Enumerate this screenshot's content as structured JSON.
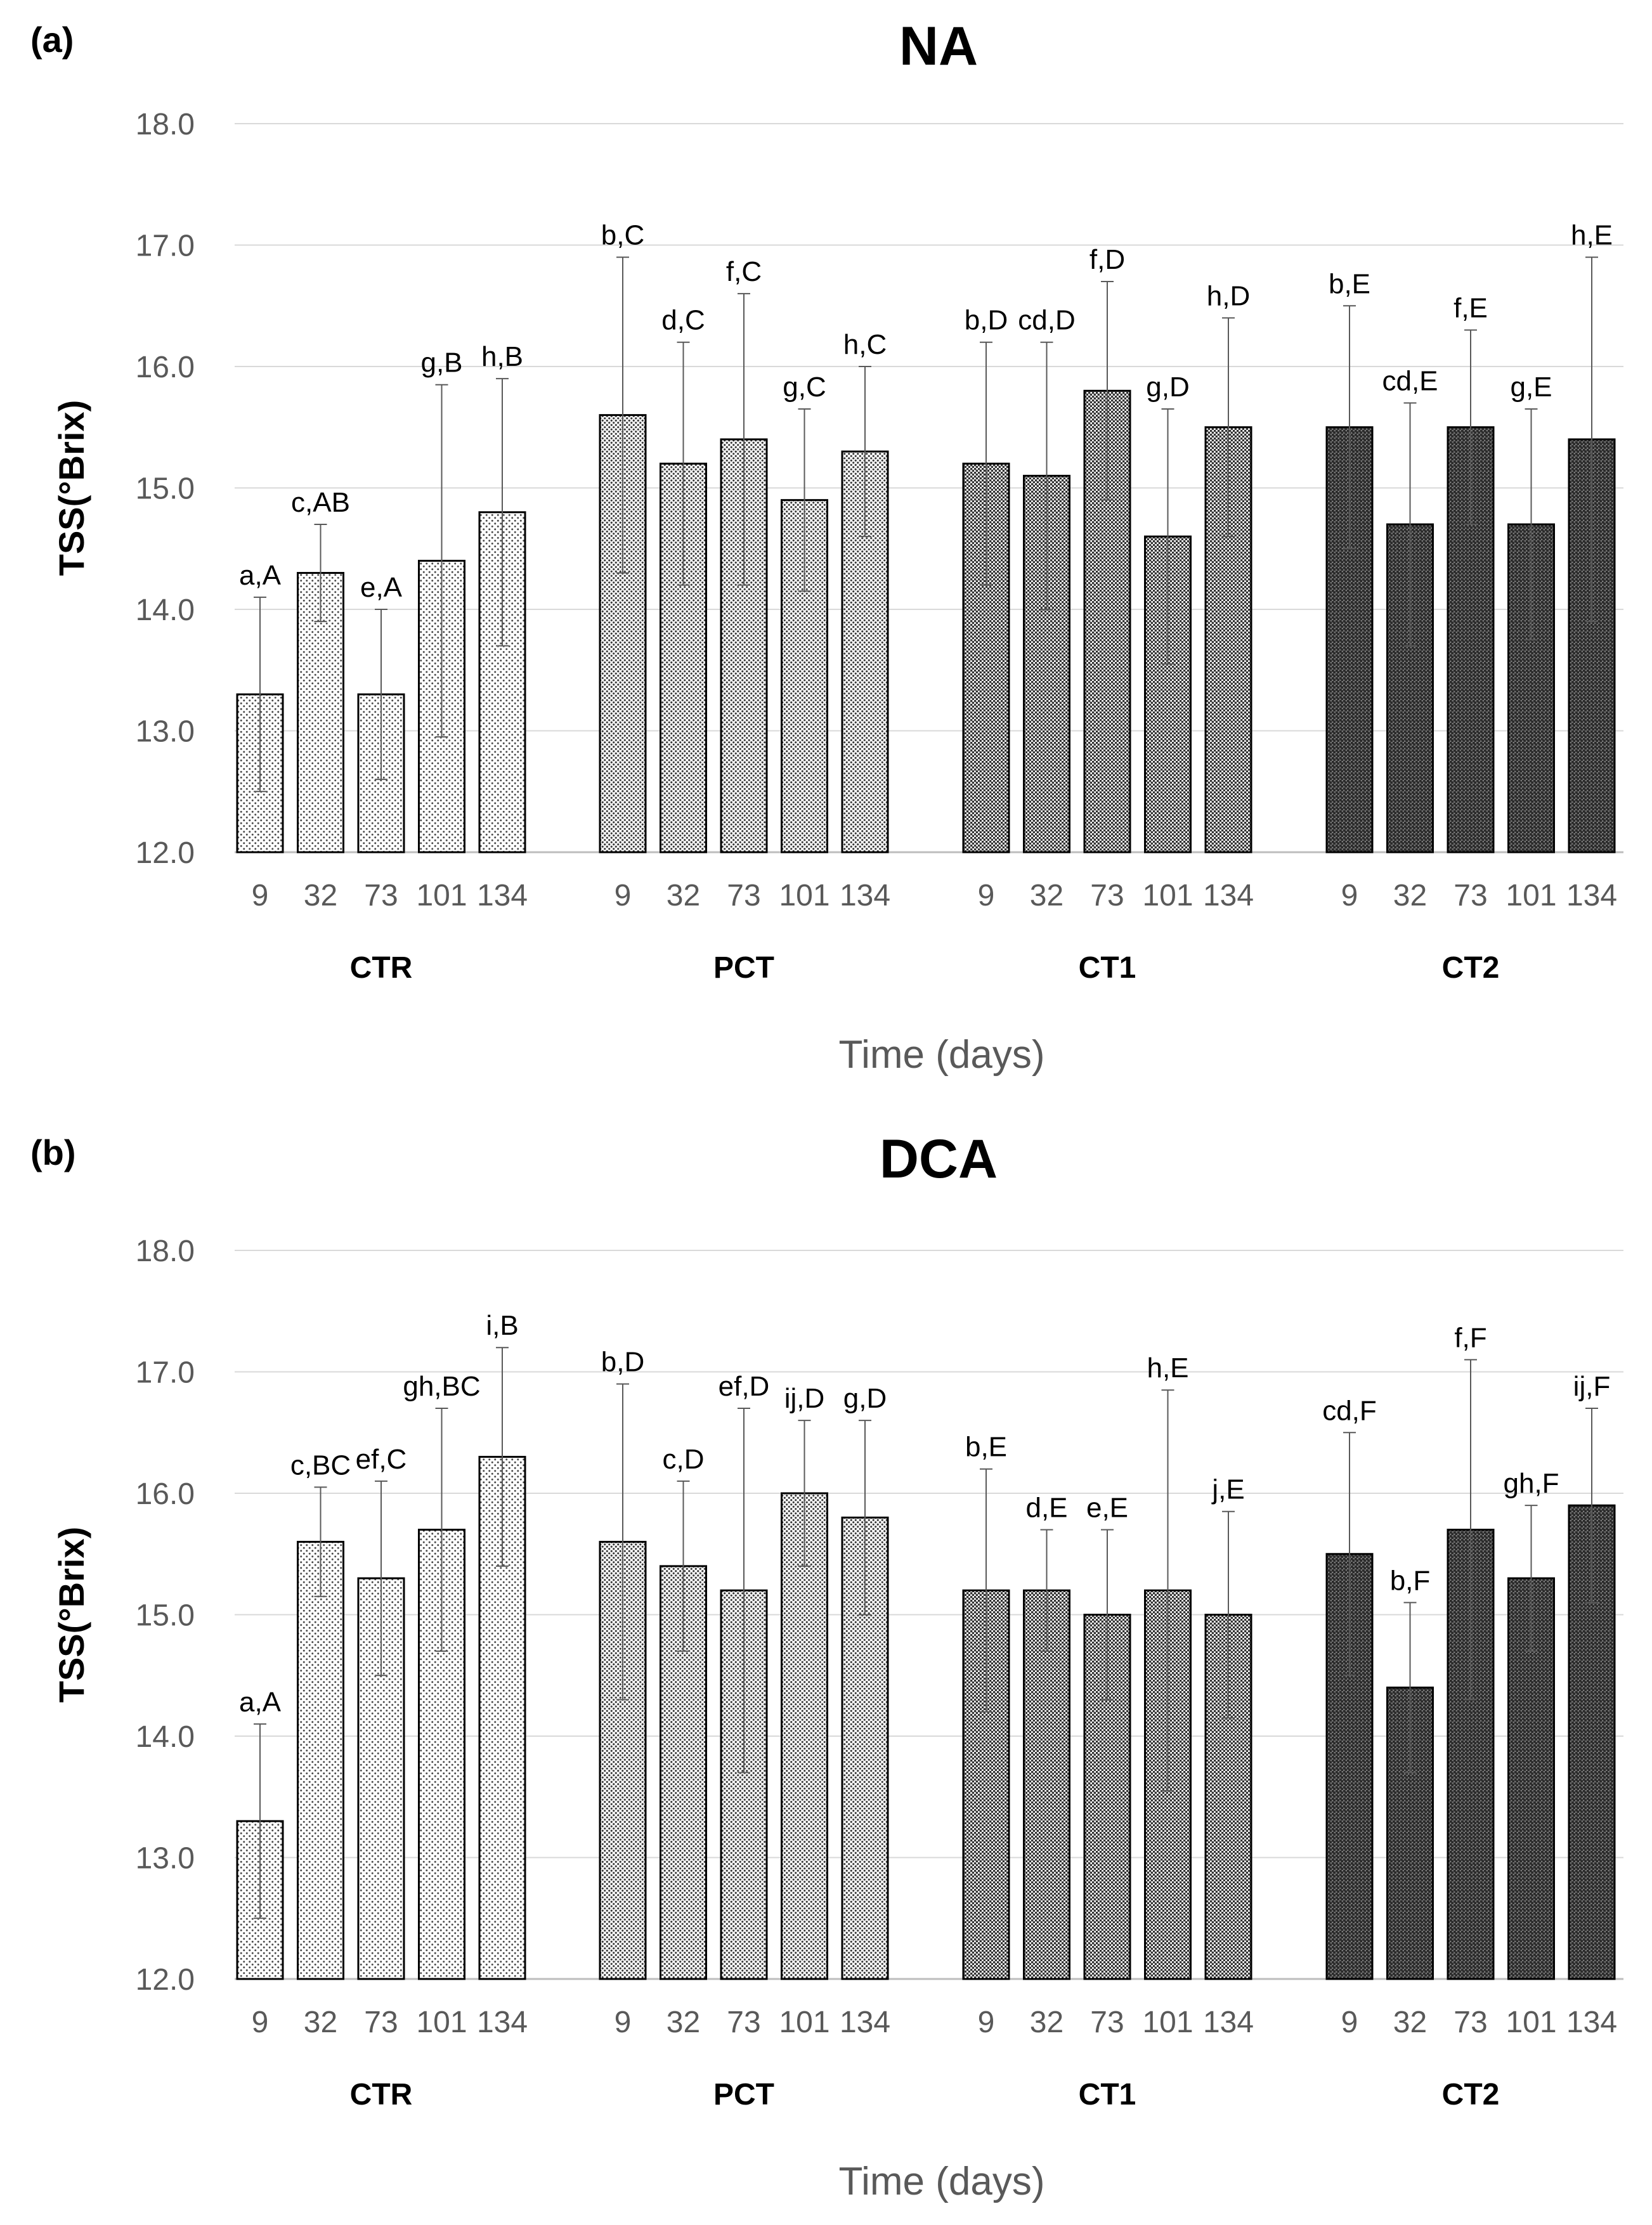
{
  "chart_data": [
    {
      "type": "bar",
      "panel_label": "(a)",
      "title": "NA",
      "ylabel": "TSS(°Brix)",
      "xlabel": "Time (days)",
      "ylim": [
        12.0,
        18.0
      ],
      "ytick_step": 1.0,
      "yticks": [
        "12.0",
        "13.0",
        "14.0",
        "15.0",
        "16.0",
        "17.0",
        "18.0"
      ],
      "grid": true,
      "groups": [
        {
          "name": "CTR",
          "shade": "light",
          "categories": [
            "9",
            "32",
            "73",
            "101",
            "134"
          ],
          "values": [
            13.3,
            14.3,
            13.3,
            14.4,
            14.8
          ],
          "errors": [
            0.8,
            0.4,
            0.7,
            1.45,
            1.1
          ],
          "labels": [
            "a,A",
            "c,AB",
            "e,A",
            "g,B",
            "h,B"
          ]
        },
        {
          "name": "PCT",
          "shade": "lightmid",
          "categories": [
            "9",
            "32",
            "73",
            "101",
            "134"
          ],
          "values": [
            15.6,
            15.2,
            15.4,
            14.9,
            15.3
          ],
          "errors": [
            1.3,
            1.0,
            1.2,
            0.75,
            0.7
          ],
          "labels": [
            "b,C",
            "d,C",
            "f,C",
            "g,C",
            "h,C"
          ]
        },
        {
          "name": "CT1",
          "shade": "mid",
          "categories": [
            "9",
            "32",
            "73",
            "101",
            "134"
          ],
          "values": [
            15.2,
            15.1,
            15.8,
            14.6,
            15.5
          ],
          "errors": [
            1.0,
            1.1,
            0.9,
            1.05,
            0.9
          ],
          "labels": [
            "b,D",
            "cd,D",
            "f,D",
            "g,D",
            "h,D"
          ]
        },
        {
          "name": "CT2",
          "shade": "dark",
          "categories": [
            "9",
            "32",
            "73",
            "101",
            "134"
          ],
          "values": [
            15.5,
            14.7,
            15.5,
            14.7,
            15.4
          ],
          "errors": [
            1.0,
            1.0,
            0.8,
            0.95,
            1.5
          ],
          "labels": [
            "b,E",
            "cd,E",
            "f,E",
            "g,E",
            "h,E"
          ]
        }
      ]
    },
    {
      "type": "bar",
      "panel_label": "(b)",
      "title": "DCA",
      "ylabel": "TSS(°Brix)",
      "xlabel": "Time (days)",
      "ylim": [
        12.0,
        18.0
      ],
      "ytick_step": 1.0,
      "yticks": [
        "12.0",
        "13.0",
        "14.0",
        "15.0",
        "16.0",
        "17.0",
        "18.0"
      ],
      "grid": true,
      "groups": [
        {
          "name": "CTR",
          "shade": "light",
          "categories": [
            "9",
            "32",
            "73",
            "101",
            "134"
          ],
          "values": [
            13.3,
            15.6,
            15.3,
            15.7,
            16.3
          ],
          "errors": [
            0.8,
            0.45,
            0.8,
            1.0,
            0.9
          ],
          "labels": [
            "a,A",
            "c,BC",
            "ef,C",
            "gh,BC",
            "i,B"
          ]
        },
        {
          "name": "PCT",
          "shade": "lightmid",
          "categories": [
            "9",
            "32",
            "73",
            "101",
            "134"
          ],
          "values": [
            15.6,
            15.4,
            15.2,
            16.0,
            15.8
          ],
          "errors": [
            1.3,
            0.7,
            1.5,
            0.6,
            0.8
          ],
          "labels": [
            "b,D",
            "c,D",
            "ef,D",
            "ij,D",
            "g,D"
          ]
        },
        {
          "name": "CT1",
          "shade": "mid",
          "categories": [
            "9",
            "32",
            "73",
            "101",
            "134"
          ],
          "values": [
            15.2,
            15.2,
            15.0,
            15.2,
            15.0
          ],
          "errors": [
            1.0,
            0.5,
            0.7,
            1.65,
            0.85
          ],
          "labels": [
            "b,E",
            "d,E",
            "e,E",
            "h,E",
            "j,E"
          ]
        },
        {
          "name": "CT2",
          "shade": "dark",
          "categories": [
            "9",
            "32",
            "73",
            "101",
            "134"
          ],
          "values": [
            15.5,
            14.4,
            15.7,
            15.3,
            15.9
          ],
          "errors": [
            1.0,
            0.7,
            1.4,
            0.6,
            0.8
          ],
          "labels": [
            "cd,F",
            "b,F",
            "f,F",
            "gh,F",
            "ij,F"
          ]
        }
      ]
    }
  ]
}
